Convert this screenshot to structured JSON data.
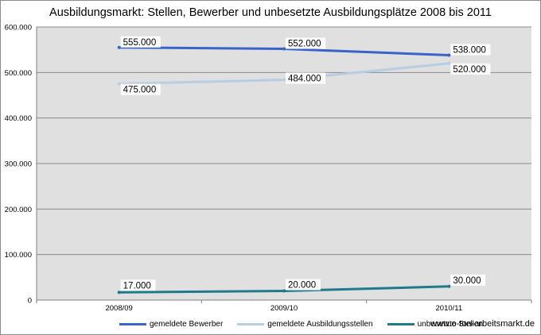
{
  "chart_data": {
    "type": "line",
    "title": "Ausbildungsmarkt: Stellen, Bewerber und unbesetzte Ausbildungsplätze 2008 bis 2011",
    "categories": [
      "2008/09",
      "2009/10",
      "2010/11"
    ],
    "ylim": [
      0,
      600000
    ],
    "yticks": [
      0,
      100000,
      200000,
      300000,
      400000,
      500000,
      600000
    ],
    "ytick_labels": [
      "0",
      "100.000",
      "200.000",
      "300.000",
      "400.000",
      "500.000",
      "600.000"
    ],
    "grid": true,
    "legend_position": "bottom",
    "series": [
      {
        "name": "gemeldete Bewerber",
        "values": [
          555000,
          552000,
          538000
        ],
        "labels": [
          "555.000",
          "552.000",
          "538.000"
        ],
        "color": "#3a62c9"
      },
      {
        "name": "gemeldete Ausbildungsstellen",
        "values": [
          475000,
          484000,
          520000
        ],
        "labels": [
          "475.000",
          "484.000",
          "520.000"
        ],
        "color": "#b6cde4"
      },
      {
        "name": "unbesetzte Stellen",
        "values": [
          17000,
          20000,
          30000
        ],
        "labels": [
          "17.000",
          "20.000",
          "30.000"
        ],
        "color": "#1f7a8c"
      }
    ]
  },
  "footer": {
    "website": "www.o-ton-arbeitsmarkt.de"
  }
}
